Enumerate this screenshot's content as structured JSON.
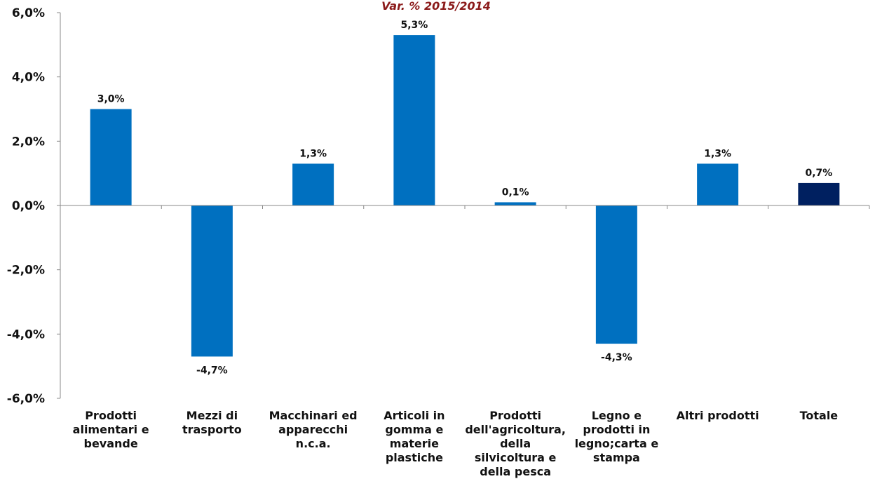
{
  "chart_data": {
    "type": "bar",
    "title": "Var. % 2015/2014",
    "categories": [
      [
        "Prodotti",
        "alimentari e",
        "bevande"
      ],
      [
        "Mezzi di",
        "trasporto"
      ],
      [
        "Macchinari ed",
        "apparecchi",
        "n.c.a."
      ],
      [
        "Articoli in",
        "gomma e",
        "materie",
        "plastiche"
      ],
      [
        "Prodotti",
        "dell'agricoltura,",
        "della",
        "silvicoltura e",
        "della pesca"
      ],
      [
        "Legno e",
        "prodotti in",
        "legno;carta e",
        "stampa"
      ],
      [
        "Altri prodotti"
      ],
      [
        "Totale"
      ]
    ],
    "values": [
      3.0,
      -4.7,
      1.3,
      5.3,
      0.1,
      -4.3,
      1.3,
      0.7
    ],
    "data_labels": [
      "3,0%",
      "-4,7%",
      "1,3%",
      "5,3%",
      "0,1%",
      "-4,3%",
      "1,3%",
      "0,7%"
    ],
    "ylim": [
      -6,
      6
    ],
    "yticks": [
      -6,
      -4,
      -2,
      0,
      2,
      4,
      6
    ],
    "ytick_labels": [
      "-6,0%",
      "-4,0%",
      "-2,0%",
      "0,0%",
      "2,0%",
      "4,0%",
      "6,0%"
    ],
    "xlabel": "",
    "ylabel": "",
    "grid": false,
    "legend": "none",
    "colors": {
      "bar": "#0070c0",
      "total_bar": "#002060",
      "title": "#8b1a1a",
      "axis": "#888888"
    }
  }
}
